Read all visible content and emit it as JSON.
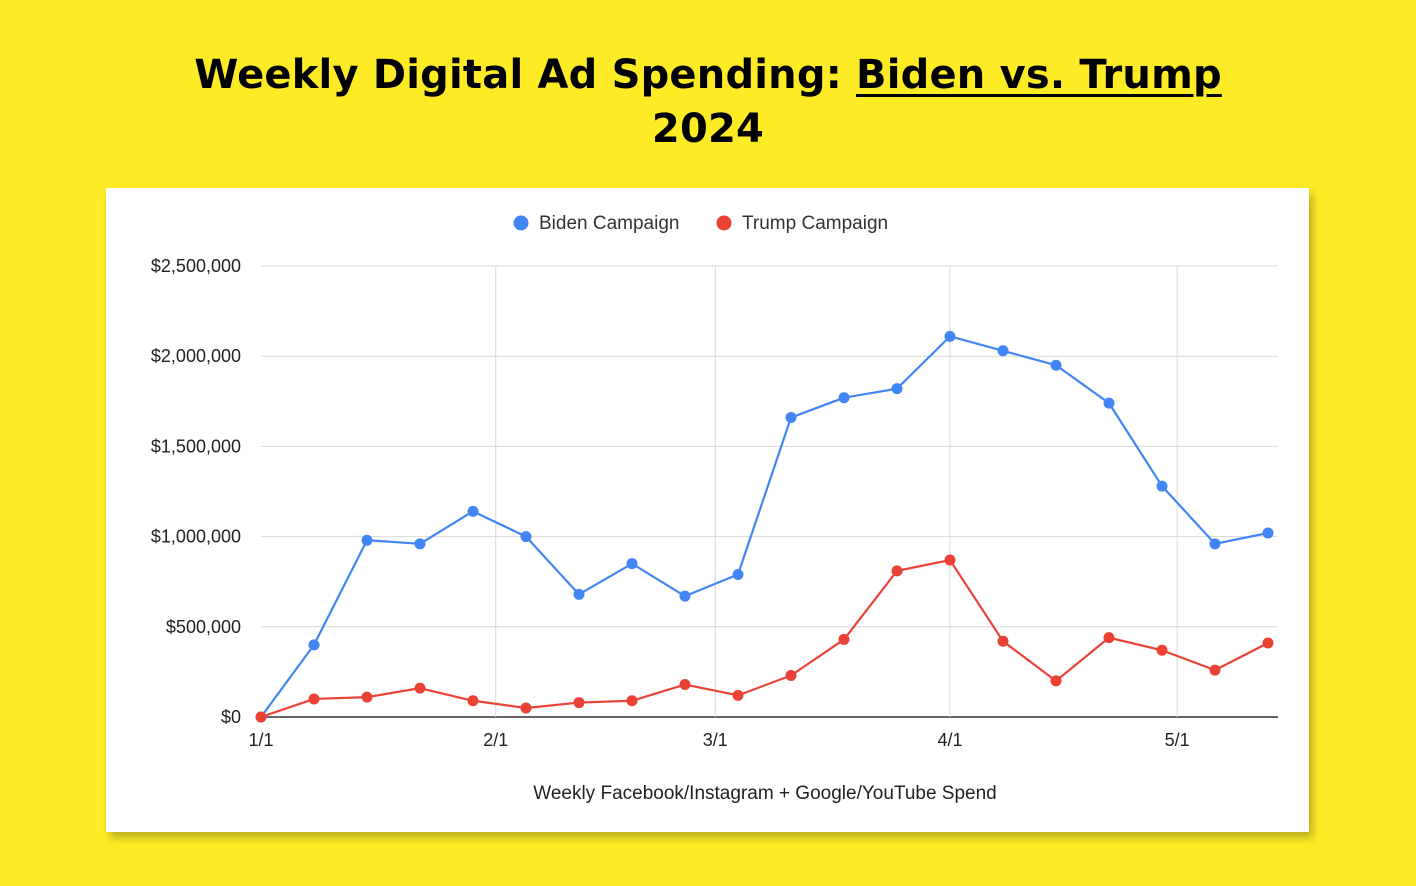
{
  "title": {
    "line1_prefix": "Weekly Digital Ad Spending: ",
    "line1_underlined": "Biden vs. Trump",
    "line2": "2024"
  },
  "colors": {
    "background": "#FDEB26",
    "biden": "#4285F4",
    "trump": "#EA4335",
    "grid": "#D9D9D9"
  },
  "chart_data": {
    "type": "line",
    "title": "Weekly Digital Ad Spending: Biden vs. Trump 2024",
    "xlabel": "Weekly Facebook/Instagram + Google/YouTube Spend",
    "ylabel": "",
    "ylim": [
      0,
      2500000
    ],
    "y_ticks": [
      "$0",
      "$500,000",
      "$1,000,000",
      "$1,500,000",
      "$2,000,000",
      "$2,500,000"
    ],
    "x_ticks": [
      "1/1",
      "2/1",
      "3/1",
      "4/1",
      "5/1"
    ],
    "x": [
      "2024-01-01",
      "2024-01-08",
      "2024-01-15",
      "2024-01-22",
      "2024-01-29",
      "2024-02-05",
      "2024-02-12",
      "2024-02-19",
      "2024-02-26",
      "2024-03-04",
      "2024-03-11",
      "2024-03-18",
      "2024-03-25",
      "2024-04-01",
      "2024-04-08",
      "2024-04-15",
      "2024-04-22",
      "2024-04-29",
      "2024-05-06",
      "2024-05-13"
    ],
    "grid": true,
    "legend_position": "top",
    "series": [
      {
        "name": "Biden Campaign",
        "values": [
          0,
          400000,
          980000,
          960000,
          1140000,
          1000000,
          680000,
          850000,
          670000,
          790000,
          1660000,
          1770000,
          1820000,
          2110000,
          2030000,
          1950000,
          1740000,
          1280000,
          960000,
          1020000
        ]
      },
      {
        "name": "Trump Campaign",
        "values": [
          0,
          100000,
          110000,
          160000,
          90000,
          50000,
          80000,
          90000,
          180000,
          120000,
          230000,
          430000,
          810000,
          870000,
          420000,
          200000,
          440000,
          370000,
          260000,
          410000
        ]
      }
    ]
  }
}
